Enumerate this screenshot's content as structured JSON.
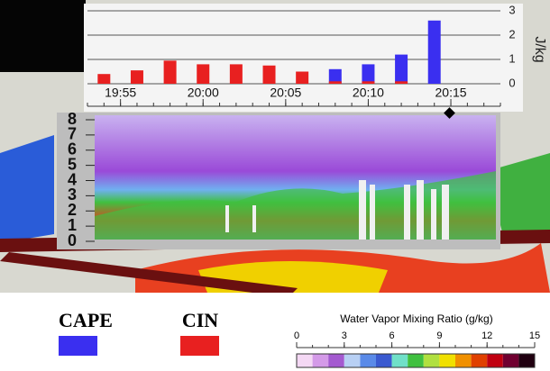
{
  "chart_data": [
    {
      "type": "bar",
      "x": [
        1194,
        1196,
        1198,
        1200,
        1202,
        1204,
        1206,
        1208,
        1210,
        1212,
        1214
      ],
      "series": [
        {
          "name": "CAPE",
          "color": "#3a2ff0",
          "values": [
            0,
            0,
            0,
            0,
            0,
            0,
            0,
            0.6,
            0.8,
            1.2,
            2.6
          ]
        },
        {
          "name": "CIN",
          "color": "#e82020",
          "values": [
            0.4,
            0.55,
            0.95,
            0.8,
            0.8,
            0.75,
            0.5,
            0.1,
            0.1,
            0.1,
            0
          ]
        }
      ],
      "xlim": [
        1193,
        1218
      ],
      "xticks": [
        {
          "value": 1195,
          "label": "19:55"
        },
        {
          "value": 1200,
          "label": "20:00"
        },
        {
          "value": 1205,
          "label": "20:05"
        },
        {
          "value": 1210,
          "label": "20:10"
        },
        {
          "value": 1215,
          "label": "20:15"
        }
      ],
      "ylim": [
        0,
        3
      ],
      "yticks": [
        0,
        1,
        2,
        3
      ],
      "y_label": "J/kg",
      "grid": true
    },
    {
      "type": "profile",
      "ylim": [
        0,
        8
      ],
      "yticks": [
        0,
        1,
        2,
        3,
        4,
        5,
        6,
        7,
        8
      ]
    },
    {
      "type": "colorbar",
      "title": "Water Vapor Mixing Ratio (g/kg)",
      "xlim": [
        0,
        15
      ],
      "xticks": [
        0,
        3,
        6,
        9,
        12,
        15
      ],
      "colors": [
        "#f4d8f4",
        "#d49ae8",
        "#a45ad0",
        "#b8d0f4",
        "#5a8ae8",
        "#3a5ad0",
        "#70e0c8",
        "#40c040",
        "#b0e040",
        "#f0e000",
        "#f09000",
        "#e04000",
        "#c00010",
        "#700030",
        "#200010"
      ]
    }
  ]
}
